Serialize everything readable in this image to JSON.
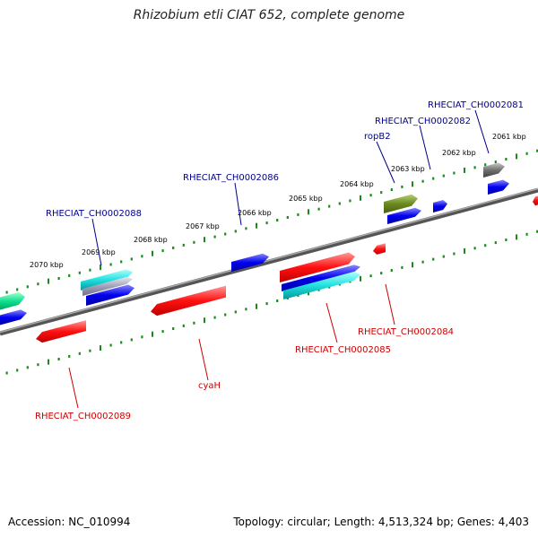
{
  "title": "Rhizobium etli CIAT 652, complete genome",
  "footer": {
    "accession": "Accession: NC_010994",
    "topology": "Topology: circular; Length: 4,513,324 bp; Genes: 4,403"
  },
  "colors": {
    "forward_label": "#00008b",
    "reverse_label": "#cc0000",
    "tick": "#1a8a1a",
    "backbone": "#888888"
  },
  "scale_labels": [
    "2070 kbp",
    "2069 kbp",
    "2068 kbp",
    "2067 kbp",
    "2066 kbp",
    "2065 kbp",
    "2064 kbp",
    "2063 kbp",
    "2062 kbp",
    "2061 kbp"
  ],
  "forward_labels": [
    "RHECIAT_CH0002088",
    "RHECIAT_CH0002086",
    "ropB2",
    "RHECIAT_CH0002082",
    "RHECIAT_CH0002081"
  ],
  "reverse_labels": [
    "RHECIAT_CH0002089",
    "cyaH",
    "RHECIAT_CH0002085",
    "RHECIAT_CH0002084"
  ]
}
